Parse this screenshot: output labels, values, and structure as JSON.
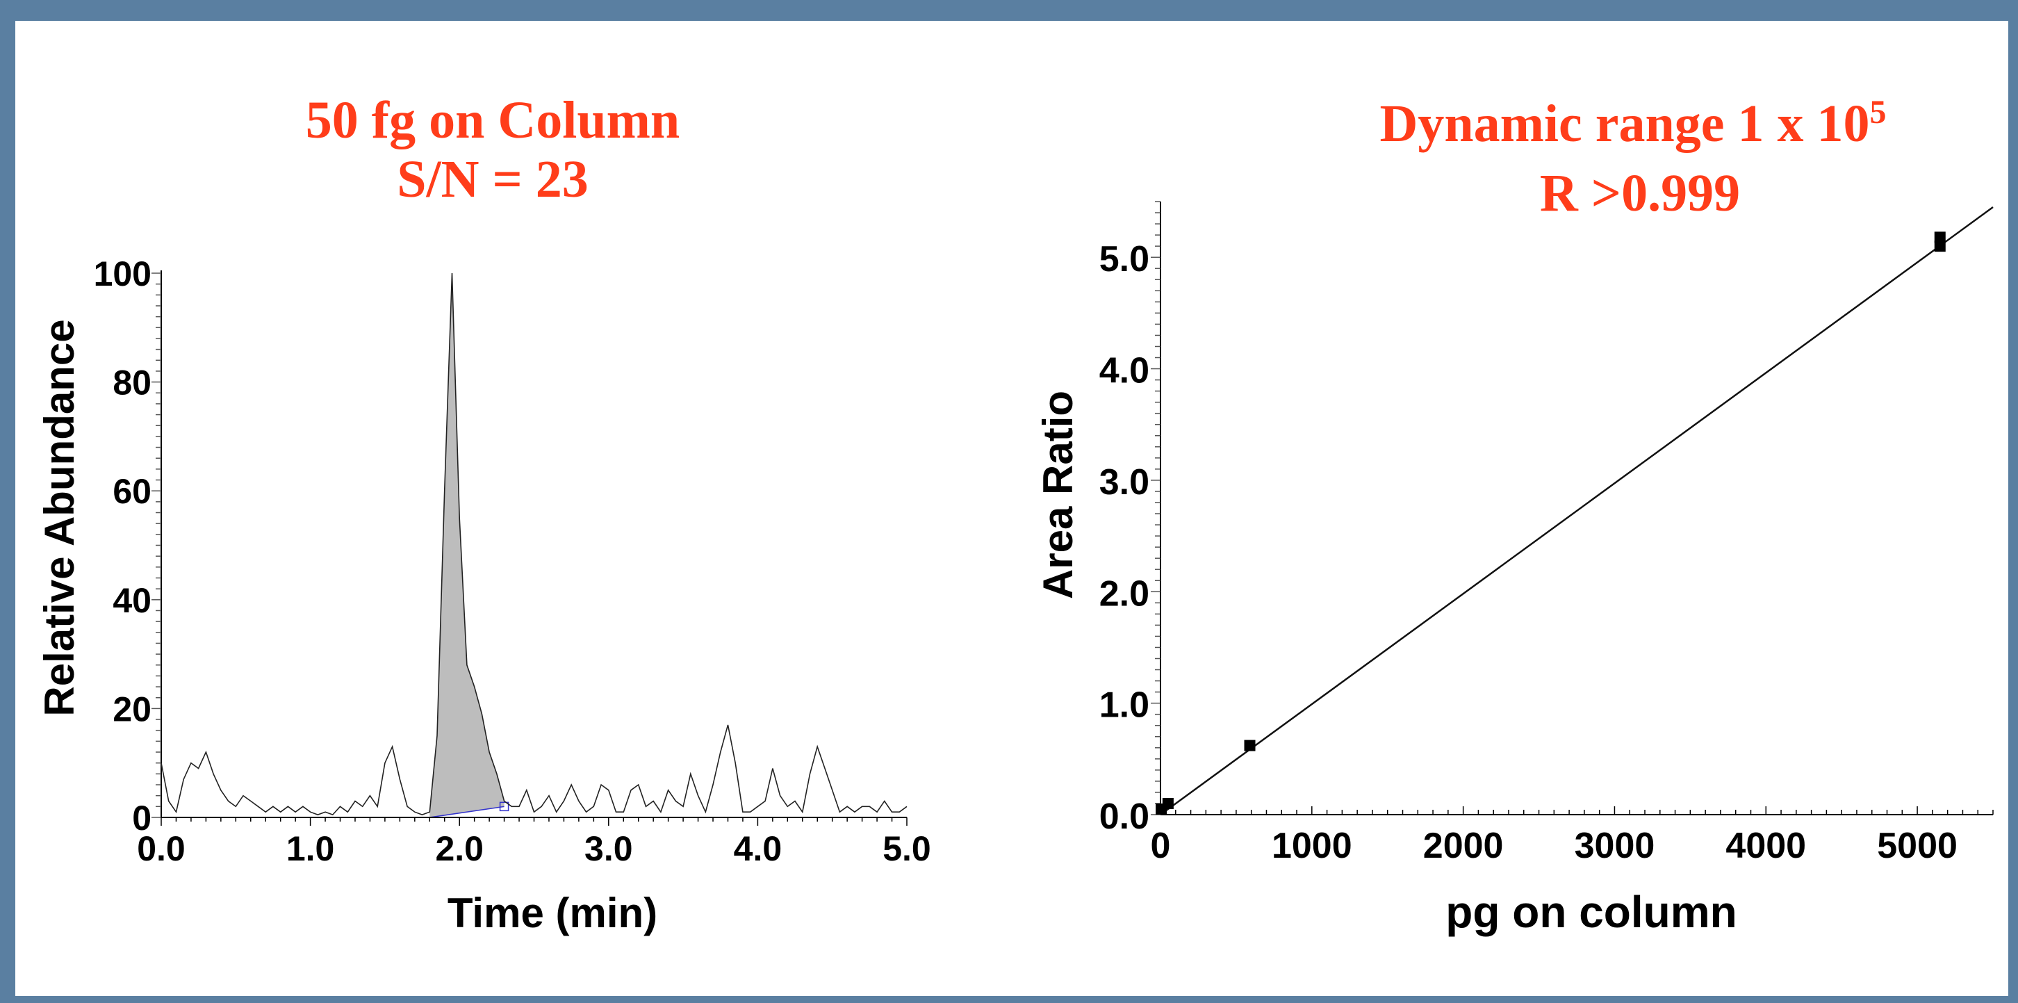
{
  "accent_color": "#ff3d1a",
  "frame_color": "#5a7fa1",
  "chart_data": [
    {
      "type": "line",
      "title_line1": "50 fg on Column",
      "title_line2": "S/N = 23",
      "xlabel": "Time (min)",
      "ylabel": "Relative Abundance",
      "xlim": [
        0,
        5
      ],
      "ylim": [
        0,
        100
      ],
      "xticks": [
        "0.0",
        "1.0",
        "2.0",
        "3.0",
        "4.0",
        "5.0"
      ],
      "yticks": [
        "0",
        "20",
        "40",
        "60",
        "80",
        "100"
      ],
      "peak_shaded_range": [
        1.8,
        2.3
      ],
      "series": [
        {
          "x": [
            0.0,
            0.05,
            0.1,
            0.15,
            0.2,
            0.25,
            0.3,
            0.35,
            0.4,
            0.45,
            0.5,
            0.55,
            0.6,
            0.65,
            0.7,
            0.75,
            0.8,
            0.85,
            0.9,
            0.95,
            1.0,
            1.05,
            1.1,
            1.15,
            1.2,
            1.25,
            1.3,
            1.35,
            1.4,
            1.45,
            1.5,
            1.55,
            1.6,
            1.65,
            1.7,
            1.75,
            1.8,
            1.85,
            1.9,
            1.95,
            2.0,
            2.05,
            2.1,
            2.15,
            2.2,
            2.25,
            2.3,
            2.35,
            2.4,
            2.45,
            2.5,
            2.55,
            2.6,
            2.65,
            2.7,
            2.75,
            2.8,
            2.85,
            2.9,
            2.95,
            3.0,
            3.05,
            3.1,
            3.15,
            3.2,
            3.25,
            3.3,
            3.35,
            3.4,
            3.45,
            3.5,
            3.55,
            3.6,
            3.65,
            3.7,
            3.75,
            3.8,
            3.85,
            3.9,
            3.95,
            4.0,
            4.05,
            4.1,
            4.15,
            4.2,
            4.25,
            4.3,
            4.35,
            4.4,
            4.45,
            4.5,
            4.55,
            4.6,
            4.65,
            4.7,
            4.75,
            4.8,
            4.85,
            4.9,
            4.95,
            5.0
          ],
          "y": [
            10,
            3,
            1,
            7,
            10,
            9,
            12,
            8,
            5,
            3,
            2,
            4,
            3,
            2,
            1,
            2,
            1,
            2,
            1,
            2,
            1,
            0.5,
            1,
            0.5,
            2,
            1,
            3,
            2,
            4,
            2,
            10,
            13,
            7,
            2,
            1,
            0.5,
            1,
            15,
            60,
            100,
            55,
            28,
            24,
            19,
            12,
            8,
            3,
            2,
            2,
            5,
            1,
            2,
            4,
            1,
            3,
            6,
            3,
            1,
            2,
            6,
            5,
            1,
            1,
            5,
            6,
            2,
            3,
            1,
            5,
            3,
            2,
            8,
            4,
            1,
            6,
            12,
            17,
            10,
            1,
            1,
            2,
            3,
            9,
            4,
            2,
            3,
            1,
            8,
            13,
            9,
            5,
            1,
            2,
            1,
            2,
            2,
            1,
            3,
            1,
            1,
            2
          ]
        }
      ]
    },
    {
      "type": "line",
      "title_line1": "Dynamic range 1 x 10",
      "title_sup": "5",
      "title_line2": "R >0.999",
      "xlabel": "pg on column",
      "ylabel": "Area Ratio",
      "xlim": [
        0,
        5500
      ],
      "ylim": [
        0,
        5.5
      ],
      "xticks": [
        "0",
        "1000",
        "2000",
        "3000",
        "4000",
        "5000"
      ],
      "yticks": [
        "0.0",
        "1.0",
        "2.0",
        "3.0",
        "4.0",
        "5.0"
      ],
      "points": [
        {
          "x": 5,
          "y": 0.05
        },
        {
          "x": 50,
          "y": 0.1
        },
        {
          "x": 590,
          "y": 0.62
        },
        {
          "x": 5150,
          "y": 5.1
        },
        {
          "x": 5150,
          "y": 5.18
        }
      ],
      "fit_line": {
        "x": [
          0,
          5500
        ],
        "y": [
          0.0,
          5.45
        ]
      }
    }
  ]
}
